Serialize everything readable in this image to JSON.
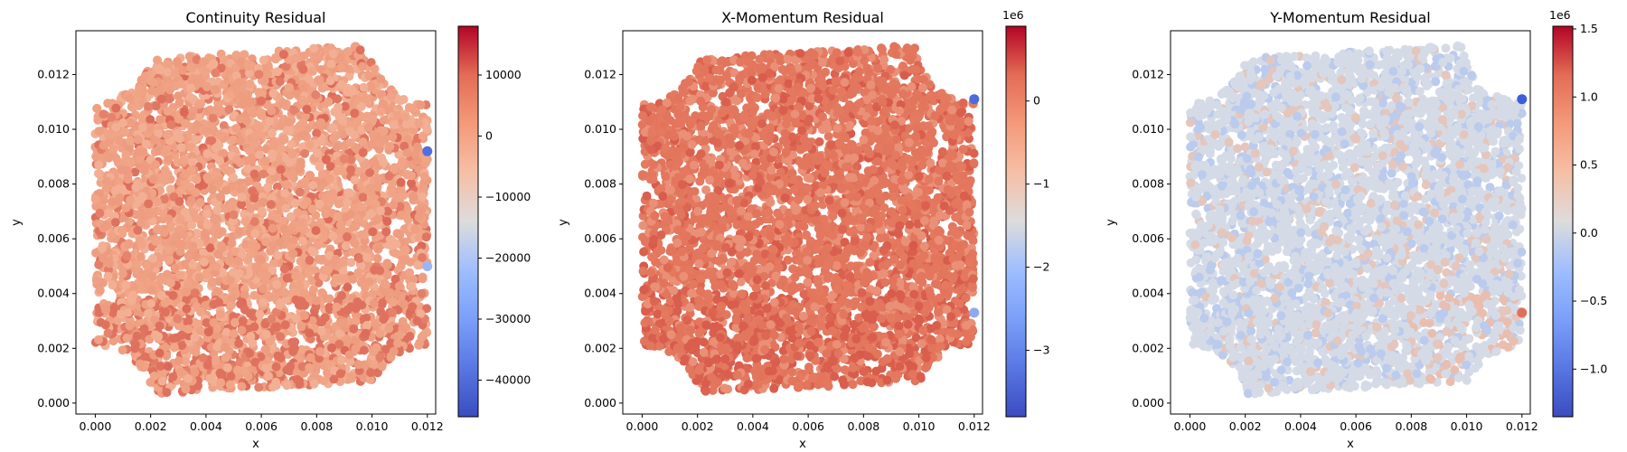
{
  "chart_data": [
    {
      "type": "scatter",
      "title": "Continuity Residual",
      "xlabel": "x",
      "ylabel": "y",
      "xlim": [
        -0.0007,
        0.0123
      ],
      "ylim": [
        -0.0004,
        0.0136
      ],
      "x_ticks": [
        "0.000",
        "0.002",
        "0.004",
        "0.006",
        "0.008",
        "0.010",
        "0.012"
      ],
      "y_ticks": [
        "0.000",
        "0.002",
        "0.004",
        "0.006",
        "0.008",
        "0.010",
        "0.012"
      ],
      "colorbar": {
        "min": -46000,
        "max": 18000,
        "ticks": [
          10000,
          0,
          -10000,
          -20000,
          -30000,
          -40000
        ],
        "tick_labels": [
          "10000",
          "0",
          "−10000",
          "−20000",
          "−30000",
          "−40000"
        ],
        "offset_label": "",
        "colormap": "coolwarm"
      },
      "domain": "square plate 0–0.012 with quarter-circle cutouts at corners",
      "base_color": "#f1a688",
      "highlights": [
        {
          "x": 0.012,
          "y": 0.0092,
          "color": "#4f6fe0"
        },
        {
          "x": 0.012,
          "y": 0.005,
          "color": "#9bb6f5"
        }
      ]
    },
    {
      "type": "scatter",
      "title": "X-Momentum Residual",
      "xlabel": "x",
      "ylabel": "y",
      "xlim": [
        -0.0007,
        0.0123
      ],
      "ylim": [
        -0.0004,
        0.0136
      ],
      "x_ticks": [
        "0.000",
        "0.002",
        "0.004",
        "0.006",
        "0.008",
        "0.010",
        "0.012"
      ],
      "y_ticks": [
        "0.000",
        "0.002",
        "0.004",
        "0.006",
        "0.008",
        "0.010",
        "0.012"
      ],
      "colorbar": {
        "min": -3.8,
        "max": 0.9,
        "ticks": [
          0,
          -1,
          -2,
          -3
        ],
        "tick_labels": [
          "0",
          "−1",
          "−2",
          "−3"
        ],
        "offset_label": "1e6",
        "colormap": "coolwarm"
      },
      "domain": "square plate 0–0.012 with quarter-circle cutouts at corners",
      "base_color": "#e47a60",
      "highlights": [
        {
          "x": 0.012,
          "y": 0.0111,
          "color": "#4a6ae0"
        },
        {
          "x": 0.012,
          "y": 0.0033,
          "color": "#8fa9f0"
        }
      ]
    },
    {
      "type": "scatter",
      "title": "Y-Momentum Residual",
      "xlabel": "x",
      "ylabel": "y",
      "xlim": [
        -0.0007,
        0.0123
      ],
      "ylim": [
        -0.0004,
        0.0136
      ],
      "x_ticks": [
        "0.000",
        "0.002",
        "0.004",
        "0.006",
        "0.008",
        "0.010",
        "0.012"
      ],
      "y_ticks": [
        "0.000",
        "0.002",
        "0.004",
        "0.006",
        "0.008",
        "0.010",
        "0.012"
      ],
      "colorbar": {
        "min": -1.35,
        "max": 1.52,
        "ticks": [
          1.5,
          1.0,
          0.5,
          0.0,
          -0.5,
          -1.0
        ],
        "tick_labels": [
          "1.5",
          "1.0",
          "0.5",
          "0.0",
          "−0.5",
          "−1.0"
        ],
        "offset_label": "1e6",
        "colormap": "coolwarm"
      },
      "domain": "square plate 0–0.012 with quarter-circle cutouts at corners",
      "base_color": "#d5dbe6",
      "highlights": [
        {
          "x": 0.012,
          "y": 0.0111,
          "color": "#3f5fd8"
        },
        {
          "x": 0.012,
          "y": 0.0033,
          "color": "#e0705a"
        }
      ]
    }
  ]
}
